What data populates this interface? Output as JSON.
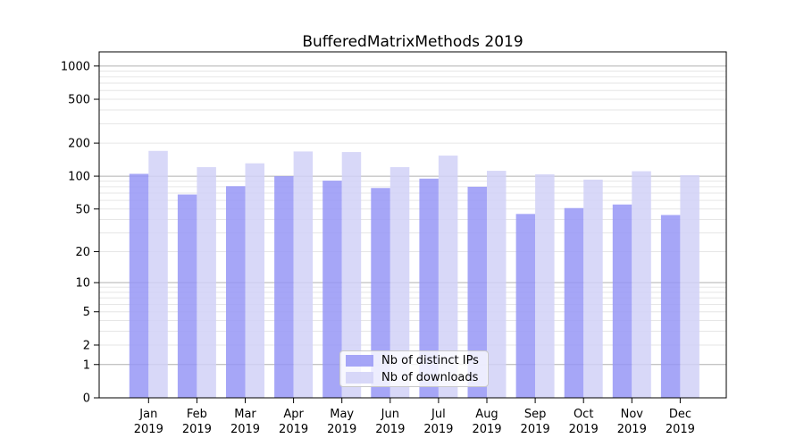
{
  "chart_data": {
    "type": "bar",
    "title": "BufferedMatrixMethods 2019",
    "x": {
      "months": [
        "Jan",
        "Feb",
        "Mar",
        "Apr",
        "May",
        "Jun",
        "Jul",
        "Aug",
        "Sep",
        "Oct",
        "Nov",
        "Dec"
      ],
      "year": "2019"
    },
    "series": [
      {
        "name": "Nb of distinct IPs",
        "color": "#9797f6",
        "values": [
          105,
          68,
          81,
          100,
          91,
          78,
          95,
          80,
          45,
          51,
          55,
          44
        ]
      },
      {
        "name": "Nb of downloads",
        "color": "#d1d1f7",
        "values": [
          170,
          121,
          131,
          168,
          166,
          121,
          154,
          112,
          104,
          93,
          111,
          102
        ]
      }
    ],
    "y_axis": {
      "scale": "log1p",
      "tick_values": [
        0,
        1,
        2,
        5,
        10,
        20,
        50,
        100,
        200,
        500,
        1000
      ],
      "range": [
        0,
        1000
      ],
      "major_gridlines": [
        1,
        10,
        100,
        1000
      ],
      "grid": true
    },
    "legend": {
      "position": "lower-center"
    },
    "colors": {
      "axis": "#000000",
      "grid_minor": "#e6e6e6",
      "grid_major": "#b0b0b0",
      "background": "#ffffff"
    }
  }
}
